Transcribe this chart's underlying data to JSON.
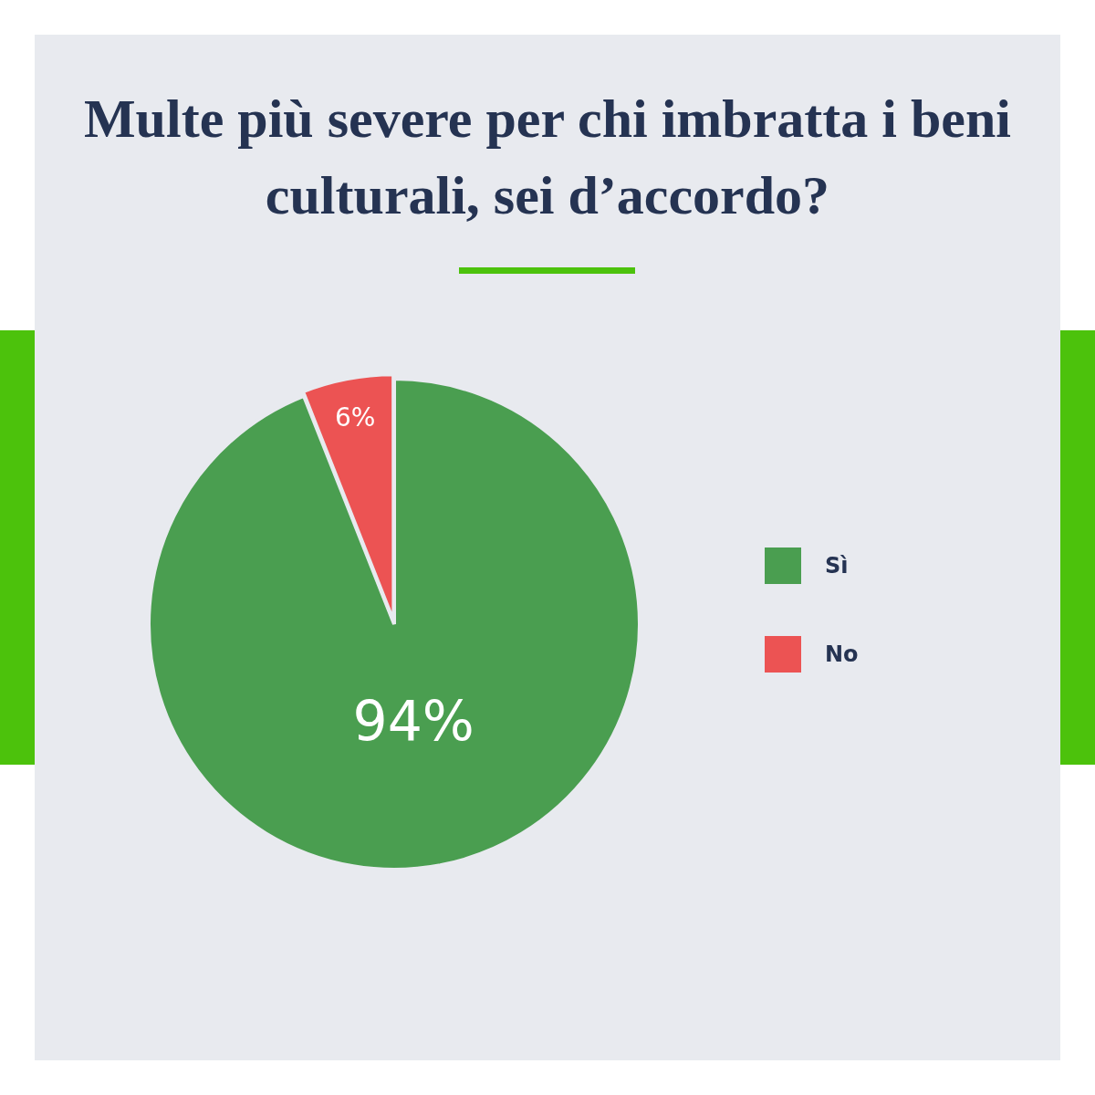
{
  "chart_data": {
    "type": "pie",
    "title": "Multe più severe per chi imbratta i beni culturali, sei d’accordo?",
    "categories": [
      "Sì",
      "No"
    ],
    "values": [
      94,
      6
    ],
    "colors": [
      "#4a9e50",
      "#ec5353"
    ],
    "value_labels": [
      "94%",
      "6%"
    ],
    "legend": "right"
  }
}
